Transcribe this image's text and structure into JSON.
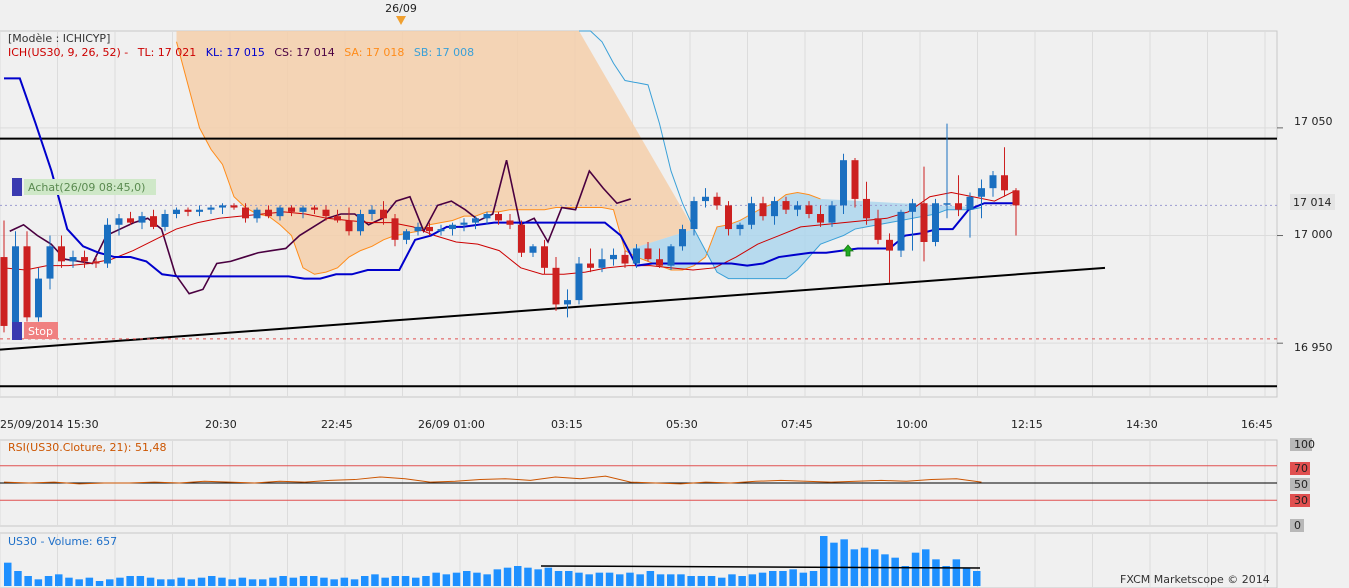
{
  "marker_date": "26/09",
  "legend": {
    "model": "[Modèle : ICHICYP]",
    "ich_name": "ICH(US30, 9, 26, 52) -",
    "tl": "TL: 17 021",
    "kl": "KL: 17 015",
    "cs": "CS: 17 014",
    "sa": "SA: 17 018",
    "sb": "SB: 17 008"
  },
  "annotations": {
    "buy": "Achat(26/09 08:45,0)",
    "stop": "Stop"
  },
  "price_axis": {
    "ticks": [
      "17 050",
      "17 000",
      "16 950"
    ],
    "current": "17 014"
  },
  "time_axis": {
    "ticks": [
      "25/09/2014 15:30",
      "20:30",
      "22:45",
      "26/09 01:00",
      "03:15",
      "05:30",
      "07:45",
      "10:00",
      "12:15",
      "14:30",
      "16:45"
    ]
  },
  "rsi": {
    "label": "RSI(US30.Cloture, 21): 51,48",
    "ticks": [
      "100",
      "70",
      "50",
      "30",
      "0"
    ]
  },
  "volume": {
    "label": "US30 - Volume: 657"
  },
  "footer": "FXCM Marketscope © 2014",
  "colors": {
    "tenkan": "#cc0000",
    "kijun": "#0000cc",
    "chikou": "#4a0040",
    "senkou_a": "#ff8c1a",
    "senkou_b": "#3aa0d8",
    "bull": "#1a6fc0",
    "bear": "#cc2020",
    "volume": "#1e90ff",
    "rsi_line": "#cc5500"
  },
  "chart_data": {
    "type": "candlestick",
    "price_ylim": [
      16925,
      17095
    ],
    "horizontal_lines": [
      17045,
      16930
    ],
    "stop_level": 16952,
    "current_price": 17014,
    "x_ticks": [
      "25/09/2014 15:30",
      "20:30",
      "22:45",
      "26/09 01:00",
      "03:15",
      "05:30",
      "07:45",
      "10:00",
      "12:15",
      "14:30",
      "16:45"
    ],
    "candles": [
      [
        16990,
        17007,
        16955,
        16958
      ],
      [
        16958,
        17002,
        16955,
        16995
      ],
      [
        16995,
        17002,
        16960,
        16962
      ],
      [
        16962,
        16985,
        16960,
        16980
      ],
      [
        16980,
        17000,
        16975,
        16995
      ],
      [
        16995,
        17000,
        16985,
        16988
      ],
      [
        16988,
        16993,
        16985,
        16990
      ],
      [
        16990,
        16993,
        16985,
        16988
      ],
      [
        16988,
        16990,
        16985,
        16987
      ],
      [
        16987,
        17008,
        16985,
        17005
      ],
      [
        17005,
        17010,
        17000,
        17008
      ],
      [
        17008,
        17011,
        17005,
        17006
      ],
      [
        17006,
        17011,
        17003,
        17009
      ],
      [
        17009,
        17012,
        17003,
        17004
      ],
      [
        17004,
        17012,
        17002,
        17010
      ],
      [
        17010,
        17013,
        17008,
        17012
      ],
      [
        17012,
        17013,
        17009,
        17011
      ],
      [
        17011,
        17014,
        17009,
        17012
      ],
      [
        17012,
        17014,
        17010,
        17013
      ],
      [
        17013,
        17015,
        17010,
        17014
      ],
      [
        17014,
        17015,
        17012,
        17013
      ],
      [
        17013,
        17015,
        17006,
        17008
      ],
      [
        17008,
        17013,
        17006,
        17012
      ],
      [
        17012,
        17014,
        17008,
        17009
      ],
      [
        17009,
        17014,
        17007,
        17013
      ],
      [
        17013,
        17014,
        17009,
        17011
      ],
      [
        17011,
        17014,
        17008,
        17013
      ],
      [
        17013,
        17014,
        17010,
        17012
      ],
      [
        17012,
        17014,
        17007,
        17009
      ],
      [
        17009,
        17012,
        17006,
        17007
      ],
      [
        17007,
        17013,
        17000,
        17002
      ],
      [
        17002,
        17012,
        17000,
        17010
      ],
      [
        17010,
        17014,
        17007,
        17012
      ],
      [
        17012,
        17016,
        17005,
        17008
      ],
      [
        17008,
        17010,
        16995,
        16998
      ],
      [
        16998,
        17003,
        16996,
        17002
      ],
      [
        17002,
        17006,
        17000,
        17004
      ],
      [
        17004,
        17006,
        17000,
        17002
      ],
      [
        17002,
        17005,
        17000,
        17003
      ],
      [
        17003,
        17006,
        17000,
        17005
      ],
      [
        17005,
        17008,
        17002,
        17006
      ],
      [
        17006,
        17009,
        17003,
        17008
      ],
      [
        17008,
        17011,
        17005,
        17010
      ],
      [
        17010,
        17011,
        17005,
        17007
      ],
      [
        17007,
        17010,
        17003,
        17005
      ],
      [
        17005,
        17007,
        16990,
        16992
      ],
      [
        16992,
        16996,
        16990,
        16995
      ],
      [
        16995,
        16998,
        16982,
        16985
      ],
      [
        16985,
        16990,
        16965,
        16968
      ],
      [
        16968,
        16975,
        16962,
        16970
      ],
      [
        16970,
        16990,
        16968,
        16987
      ],
      [
        16987,
        16994,
        16983,
        16985
      ],
      [
        16985,
        16994,
        16983,
        16989
      ],
      [
        16989,
        16994,
        16986,
        16991
      ],
      [
        16991,
        16993,
        16985,
        16987
      ],
      [
        16987,
        16996,
        16985,
        16994
      ],
      [
        16994,
        16997,
        16988,
        16989
      ],
      [
        16989,
        16994,
        16985,
        16986
      ],
      [
        16986,
        16996,
        16984,
        16995
      ],
      [
        16995,
        17005,
        16993,
        17003
      ],
      [
        17003,
        17018,
        17000,
        17016
      ],
      [
        17016,
        17022,
        17013,
        17018
      ],
      [
        17018,
        17020,
        17012,
        17014
      ],
      [
        17014,
        17016,
        17000,
        17003
      ],
      [
        17003,
        17006,
        17000,
        17005
      ],
      [
        17005,
        17018,
        17003,
        17015
      ],
      [
        17015,
        17018,
        17007,
        17009
      ],
      [
        17009,
        17018,
        17005,
        17016
      ],
      [
        17016,
        17018,
        17010,
        17012
      ],
      [
        17012,
        17016,
        17009,
        17014
      ],
      [
        17014,
        17016,
        17008,
        17010
      ],
      [
        17010,
        17014,
        17004,
        17006
      ],
      [
        17006,
        17016,
        17004,
        17014
      ],
      [
        17014,
        17038,
        17010,
        17035
      ],
      [
        17035,
        17036,
        17013,
        17017
      ],
      [
        17017,
        17025,
        17005,
        17008
      ],
      [
        17008,
        17012,
        16996,
        16998
      ],
      [
        16998,
        17001,
        16978,
        16993
      ],
      [
        16993,
        17012,
        16990,
        17011
      ],
      [
        17011,
        17017,
        16993,
        17015
      ],
      [
        17015,
        17032,
        16988,
        16997
      ],
      [
        16997,
        17017,
        16995,
        17015
      ],
      [
        17015,
        17052,
        17008,
        17015
      ],
      [
        17015,
        17028,
        17009,
        17012
      ],
      [
        17012,
        17020,
        16999,
        17018
      ],
      [
        17018,
        17026,
        17008,
        17022
      ],
      [
        17022,
        17030,
        17018,
        17028
      ],
      [
        17028,
        17041,
        17018,
        17021
      ],
      [
        17021,
        17022,
        17000,
        17014
      ]
    ],
    "tenkan": [
      16985,
      16984,
      16986,
      16986,
      16987,
      16989,
      16993,
      16998,
      17003,
      17006,
      17008,
      17009,
      17010,
      17011,
      17010,
      17008,
      17007,
      17006,
      17006,
      17004,
      17000,
      16997,
      16996,
      16993,
      16985,
      16982,
      16982,
      16983,
      16985,
      16986,
      16986,
      16985,
      16984,
      16985,
      16990,
      16996,
      17000,
      17004,
      17005,
      17006,
      17007,
      17008,
      17011,
      17018,
      17020,
      17018,
      17016,
      17021
    ],
    "kijun": [
      17073,
      17073,
      17052,
      17030,
      17003,
      16995,
      16992,
      16990,
      16990,
      16988,
      16982,
      16981,
      16981,
      16981,
      16981,
      16981,
      16981,
      16981,
      16981,
      16980,
      16980,
      16982,
      16982,
      16984,
      16984,
      16984,
      16998,
      17000,
      17004,
      17004,
      17005,
      17006,
      17006,
      17006,
      17006,
      17006,
      17006,
      17006,
      17006,
      17000,
      16986,
      16987,
      16987,
      16987,
      16987,
      16987,
      16987,
      16986,
      16987,
      16990,
      16991,
      16992,
      16992,
      16993,
      16994,
      16994,
      16994,
      17000,
      17001,
      17003,
      17003,
      17012,
      17015,
      17015,
      17015
    ],
    "chikou": [
      17002,
      17005,
      17000,
      16996,
      16989,
      16988,
      16987,
      17000,
      17003,
      17006,
      17008,
      17003,
      16982,
      16973,
      16975,
      16987,
      16988,
      16990,
      16992,
      16993,
      16994,
      17000,
      17004,
      17008,
      17010,
      17010,
      17005,
      17008,
      17016,
      17018,
      17002,
      17014,
      17016,
      17012,
      17007,
      17010,
      17035,
      17005,
      17008,
      16997,
      17013,
      17012,
      17030,
      17022,
      17015,
      17017
    ],
    "senkou_a": [
      17090,
      17070,
      17050,
      17040,
      17033,
      17018,
      17013,
      17010,
      17009,
      17005,
      17000,
      16985,
      16982,
      16983,
      16985,
      16990,
      16993,
      16995,
      16998,
      17000,
      17001,
      17002,
      17005,
      17006,
      17007,
      17009,
      17009,
      17011,
      17011,
      17012,
      17012,
      17012,
      17012,
      17013,
      17013,
      17013,
      17013,
      17013,
      17012,
      16993,
      16990,
      16988,
      16986,
      16984,
      16984,
      16986,
      16990,
      17004,
      17005,
      17007,
      17010,
      17013,
      17015,
      17019,
      17020,
      17019,
      17017
    ],
    "senkou_b": [
      17095,
      17095,
      17090,
      17080,
      17072,
      17071,
      17070,
      17052,
      17030,
      17015,
      17003,
      16993,
      16983,
      16980,
      16980,
      16980,
      16980,
      16980,
      16980,
      16984,
      16990,
      16996,
      16998,
      17000,
      17003,
      17004,
      17005,
      17006,
      17007,
      17008,
      17009,
      17010,
      17012,
      17012,
      17012,
      17013
    ],
    "rsi": [
      51,
      50,
      51,
      49,
      50,
      50,
      51,
      50,
      52,
      51,
      50,
      52,
      51,
      53,
      54,
      57,
      55,
      51,
      52,
      54,
      55,
      53,
      57,
      55,
      58,
      51,
      50,
      49,
      51,
      50,
      52,
      53,
      52,
      51,
      52,
      53,
      52,
      54,
      55,
      51
    ],
    "rsi_levels": [
      70,
      50,
      30
    ],
    "volume": [
      70,
      45,
      30,
      20,
      30,
      35,
      25,
      20,
      25,
      15,
      20,
      25,
      30,
      30,
      25,
      20,
      20,
      25,
      20,
      25,
      30,
      25,
      20,
      25,
      20,
      20,
      25,
      30,
      25,
      30,
      30,
      25,
      20,
      25,
      20,
      30,
      35,
      25,
      30,
      30,
      25,
      30,
      40,
      35,
      40,
      45,
      40,
      35,
      50,
      55,
      60,
      55,
      50,
      55,
      45,
      45,
      40,
      35,
      40,
      40,
      35,
      40,
      35,
      45,
      35,
      35,
      35,
      30,
      30,
      30,
      25,
      35,
      30,
      35,
      40,
      45,
      45,
      50,
      40,
      45,
      150,
      130,
      140,
      110,
      115,
      110,
      95,
      85,
      60,
      100,
      110,
      80,
      60,
      80,
      55,
      45
    ]
  }
}
